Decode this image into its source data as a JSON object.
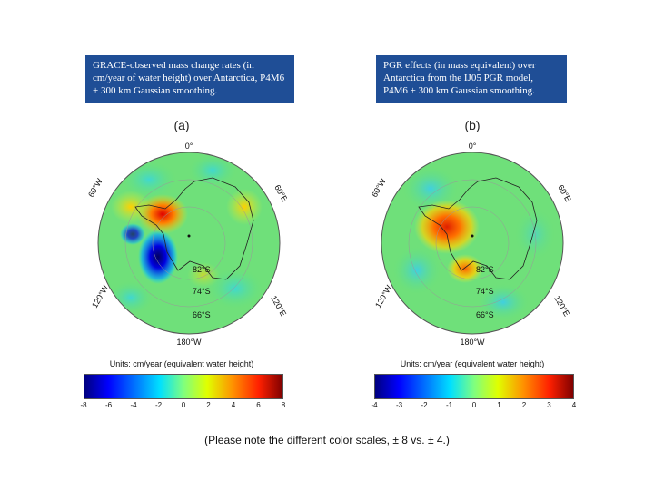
{
  "captions": {
    "a": "GRACE-observed mass change rates (in cm/year of water height) over Antarctica, P4M6 + 300 km Gaussian smoothing.",
    "b": "PGR effects (in mass equivalent) over Antarctica from the IJ05 PGR model, P4M6 + 300 km Gaussian smoothing."
  },
  "panels": {
    "a": {
      "label": "(a)",
      "lon_labels": {
        "top": "0°",
        "left": "60°W",
        "right": "60°E",
        "bottom_left": "120°W",
        "bottom_right": "120°E",
        "bottom": "180°W"
      },
      "lat_labels": [
        "82°S",
        "74°S",
        "66°S"
      ],
      "colorbar_title": "Units: cm/year (equivalent water height)",
      "colorbar_ticks": [
        "-8",
        "-6",
        "-4",
        "-2",
        "0",
        "2",
        "4",
        "6",
        "8"
      ]
    },
    "b": {
      "label": "(b)",
      "lon_labels": {
        "top": "0°",
        "left": "60°W",
        "right": "60°E",
        "bottom_left": "120°W",
        "bottom_right": "120°E",
        "bottom": "180°W"
      },
      "lat_labels": [
        "82°S",
        "74°S",
        "66°S"
      ],
      "colorbar_title": "Units: cm/year (equivalent water height)",
      "colorbar_ticks": [
        "-4",
        "-3",
        "-2",
        "-1",
        "0",
        "1",
        "2",
        "3",
        "4"
      ]
    }
  },
  "note": "(Please note the different color scales, ± 8 vs. ± 4.)",
  "colors": {
    "caption_bg": "#1f4e96",
    "field_base": "#6fe07a"
  }
}
